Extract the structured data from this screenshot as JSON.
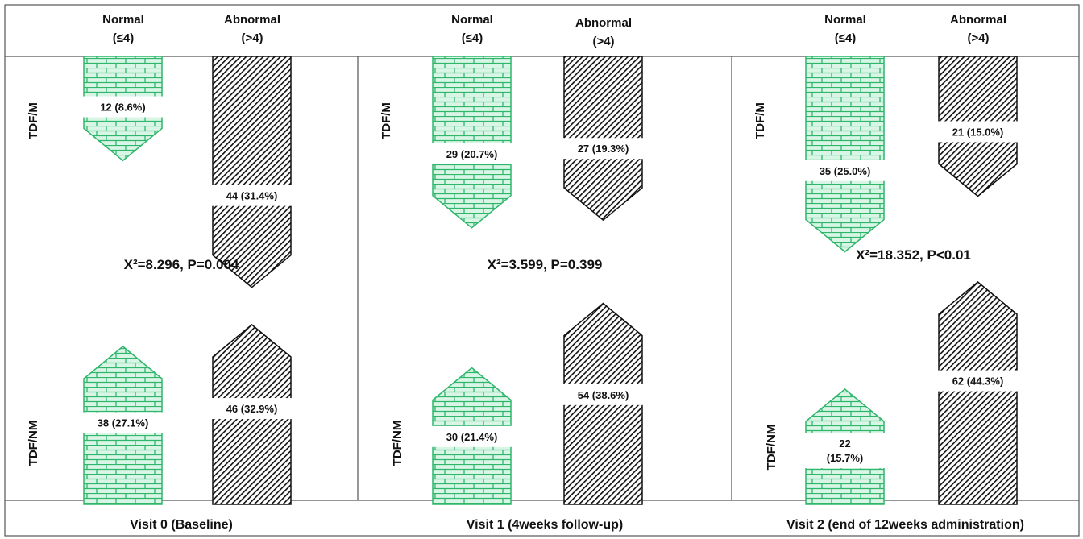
{
  "colors": {
    "normal_fill": "#d8f5e6",
    "normal_line": "#2fb66b",
    "abnormal_line": "#111111",
    "border": "#555555"
  },
  "chart_data": {
    "type": "bar",
    "column_headers": [
      {
        "title": "Normal",
        "criterion": "(≤4)"
      },
      {
        "title": "Abnormal",
        "criterion": "(>4)"
      }
    ],
    "rows": [
      "TDF/M",
      "TDF/NM"
    ],
    "panels": [
      {
        "visit": "Visit 0 (Baseline)",
        "stat": "X²=8.296, P=0.004",
        "values": [
          {
            "row": "TDF/M",
            "category": "Normal",
            "count": 12,
            "percent": 8.6,
            "label": "12 (8.6%)"
          },
          {
            "row": "TDF/M",
            "category": "Abnormal",
            "count": 44,
            "percent": 31.4,
            "label": "44 (31.4%)"
          },
          {
            "row": "TDF/NM",
            "category": "Normal",
            "count": 38,
            "percent": 27.1,
            "label": "38 (27.1%)"
          },
          {
            "row": "TDF/NM",
            "category": "Abnormal",
            "count": 46,
            "percent": 32.9,
            "label": "46 (32.9%)"
          }
        ]
      },
      {
        "visit": "Visit 1 (4weeks follow-up)",
        "stat": "X²=3.599, P=0.399",
        "values": [
          {
            "row": "TDF/M",
            "category": "Normal",
            "count": 29,
            "percent": 20.7,
            "label": "29 (20.7%)"
          },
          {
            "row": "TDF/M",
            "category": "Abnormal",
            "count": 27,
            "percent": 19.3,
            "label": "27 (19.3%)"
          },
          {
            "row": "TDF/NM",
            "category": "Normal",
            "count": 30,
            "percent": 21.4,
            "label": "30 (21.4%)"
          },
          {
            "row": "TDF/NM",
            "category": "Abnormal",
            "count": 54,
            "percent": 38.6,
            "label": "54 (38.6%)"
          }
        ]
      },
      {
        "visit": "Visit 2 (end of 12weeks administration)",
        "stat": "X²=18.352, P<0.01",
        "values": [
          {
            "row": "TDF/M",
            "category": "Normal",
            "count": 35,
            "percent": 25.0,
            "label": "35 (25.0%)"
          },
          {
            "row": "TDF/M",
            "category": "Abnormal",
            "count": 21,
            "percent": 15.0,
            "label": "21 (15.0%)"
          },
          {
            "row": "TDF/NM",
            "category": "Normal",
            "count": 22,
            "percent": 15.7,
            "label": "22 (15.7%)",
            "label_lines": [
              "22",
              "(15.7%)"
            ]
          },
          {
            "row": "TDF/NM",
            "category": "Abnormal",
            "count": 62,
            "percent": 44.3,
            "label": "62 (44.3%)"
          }
        ]
      }
    ]
  }
}
